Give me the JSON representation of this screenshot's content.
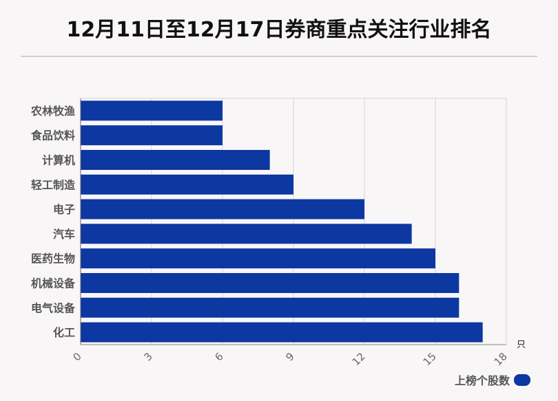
{
  "chart_data": {
    "type": "bar",
    "orientation": "horizontal",
    "title": "12月11日至12月17日券商重点关注行业排名",
    "categories": [
      "农林牧渔",
      "食品饮料",
      "计算机",
      "轻工制造",
      "电子",
      "汽车",
      "医药生物",
      "机械设备",
      "电气设备",
      "化工"
    ],
    "series": [
      {
        "name": "上榜个股数",
        "values": [
          6,
          6,
          8,
          9,
          12,
          14,
          15,
          16,
          16,
          17
        ]
      }
    ],
    "xlim": [
      0,
      18
    ],
    "xticks": [
      0,
      3,
      6,
      9,
      12,
      15,
      18
    ],
    "unit": "只",
    "grid": true,
    "legend_position": "bottom-right",
    "bar_color": "#0d37a1"
  }
}
